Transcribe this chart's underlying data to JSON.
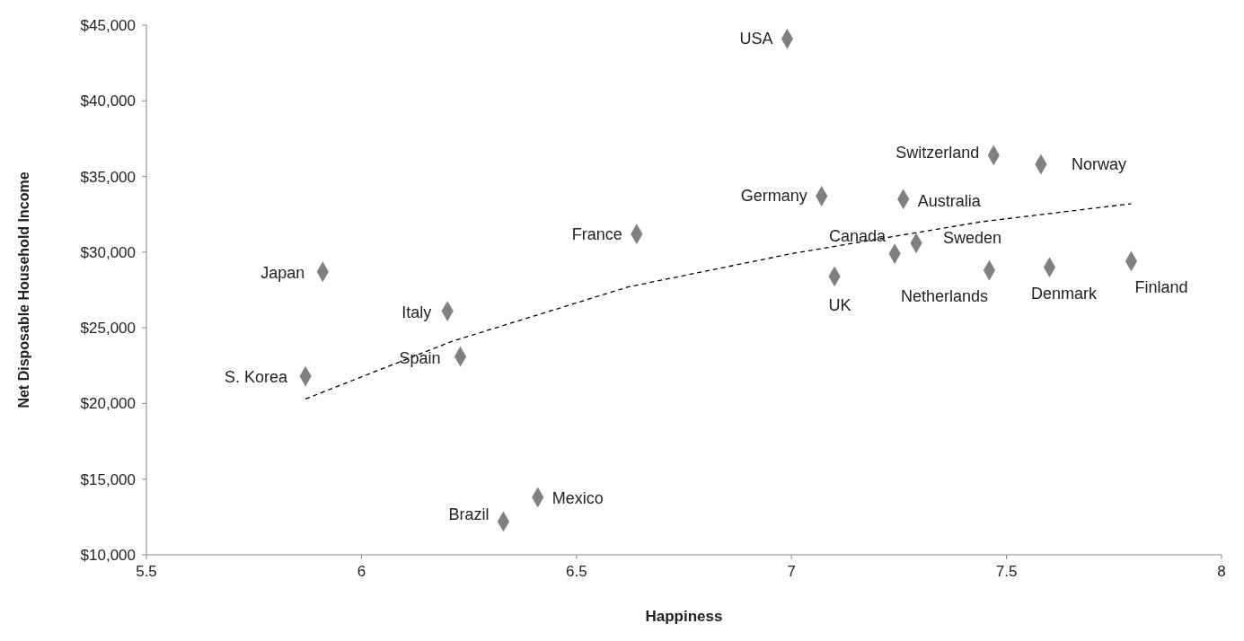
{
  "chart_data": {
    "type": "scatter",
    "xlabel": "Happiness",
    "ylabel": "Net Disposable Household Income",
    "xlim": [
      5.5,
      8
    ],
    "xticks": [
      5.5,
      6,
      6.5,
      7,
      7.5,
      8
    ],
    "ylim": [
      10000,
      45000
    ],
    "yticks": [
      {
        "value": 10000,
        "label": "$10,000"
      },
      {
        "value": 15000,
        "label": "$15,000"
      },
      {
        "value": 20000,
        "label": "$20,000"
      },
      {
        "value": 25000,
        "label": "$25,000"
      },
      {
        "value": 30000,
        "label": "$30,000"
      },
      {
        "value": 35000,
        "label": "$35,000"
      },
      {
        "value": 40000,
        "label": "$40,000"
      },
      {
        "value": 45000,
        "label": "$45,000"
      }
    ],
    "grid": false,
    "marker": "diamond",
    "series": [
      {
        "color": "#808080",
        "x": [
          6.99,
          7.47,
          7.58,
          7.07,
          7.26,
          6.64,
          7.24,
          7.29,
          7.1,
          7.46,
          7.6,
          7.79,
          5.91,
          6.2,
          6.23,
          5.87,
          6.41,
          6.33
        ],
        "values": [
          44100,
          36400,
          35800,
          33700,
          33500,
          31200,
          29900,
          30600,
          28400,
          28800,
          29000,
          29400,
          28700,
          26100,
          23100,
          21800,
          13800,
          12200
        ]
      },
      {
        "type": "line",
        "color": "#000000",
        "line_style": "dashed",
        "marker": "none",
        "x": [
          5.87,
          6.21,
          6.62,
          7.0,
          7.44,
          7.79
        ],
        "values": [
          20300,
          24100,
          27700,
          29900,
          32000,
          33200
        ]
      }
    ],
    "annotations": [
      {
        "text": "USA",
        "x": 6.99,
        "y": 44100
      },
      {
        "text": "Switzerland",
        "x": 7.47,
        "y": 36400
      },
      {
        "text": "Norway",
        "x": 7.58,
        "y": 35800
      },
      {
        "text": "Germany",
        "x": 7.07,
        "y": 33700
      },
      {
        "text": "Australia",
        "x": 7.26,
        "y": 33500
      },
      {
        "text": "France",
        "x": 6.64,
        "y": 31200
      },
      {
        "text": "Canada",
        "x": 7.24,
        "y": 29900
      },
      {
        "text": "Sweden",
        "x": 7.29,
        "y": 30600
      },
      {
        "text": "UK",
        "x": 7.1,
        "y": 28400
      },
      {
        "text": "Netherlands",
        "x": 7.46,
        "y": 28800
      },
      {
        "text": "Denmark",
        "x": 7.6,
        "y": 29000
      },
      {
        "text": "Finland",
        "x": 7.79,
        "y": 29400
      },
      {
        "text": "Japan",
        "x": 5.91,
        "y": 28700
      },
      {
        "text": "Italy",
        "x": 6.2,
        "y": 26100
      },
      {
        "text": "Spain",
        "x": 6.23,
        "y": 23100
      },
      {
        "text": "S. Korea",
        "x": 5.87,
        "y": 21800
      },
      {
        "text": "Mexico",
        "x": 6.41,
        "y": 13800
      },
      {
        "text": "Brazil",
        "x": 6.33,
        "y": 12200
      }
    ]
  }
}
